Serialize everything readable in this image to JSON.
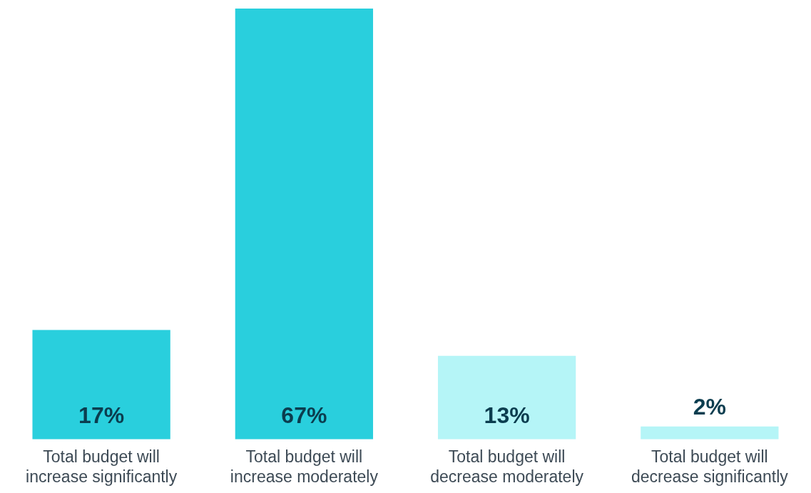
{
  "chart_data": {
    "type": "bar",
    "categories": [
      "Total budget will increase significantly",
      "Total budget will increase moderately",
      "Total budget will decrease moderately",
      "Total budget will decrease significantly"
    ],
    "values": [
      17,
      67,
      13,
      2
    ],
    "colors": [
      "#29cfdd",
      "#29cfdd",
      "#b5f5f7",
      "#b5f5f7"
    ],
    "value_labels": [
      "17%",
      "67%",
      "13%",
      "2%"
    ]
  }
}
